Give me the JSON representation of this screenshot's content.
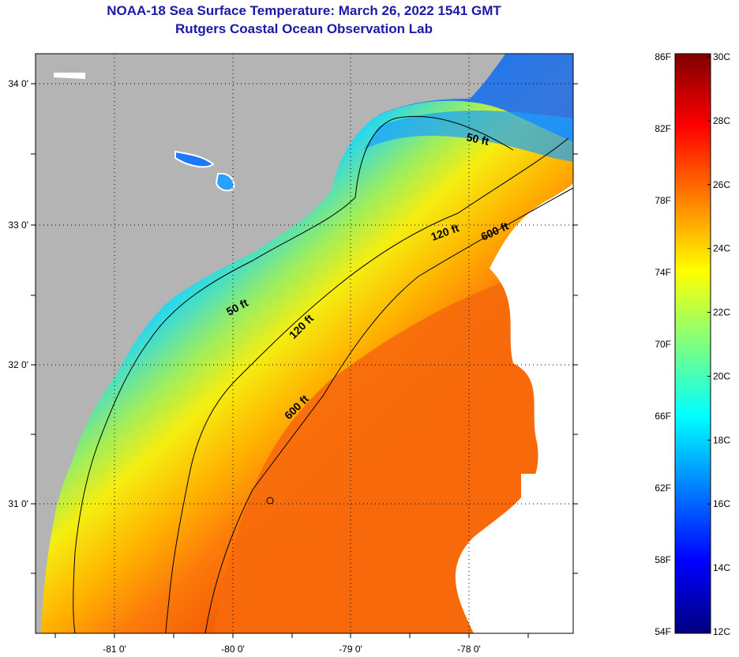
{
  "title": {
    "line1": "NOAA-18 Sea Surface Temperature:  March 26, 2022 1541 GMT",
    "line2": "Rutgers Coastal Ocean Observation Lab"
  },
  "map": {
    "lat_ticks": [
      "34 0'",
      "33 0'",
      "32 0'",
      "31 0'"
    ],
    "lon_ticks": [
      "-81 0'",
      "-80 0'",
      "-79 0'",
      "-78 0'"
    ],
    "contours": [
      {
        "label": "50 ft"
      },
      {
        "label": "50 ft"
      },
      {
        "label": "120 ft"
      },
      {
        "label": "120 ft"
      },
      {
        "label": "600 ft"
      },
      {
        "label": "600 ft"
      }
    ]
  },
  "colorbar": {
    "fahrenheit": [
      "86F",
      "82F",
      "78F",
      "74F",
      "70F",
      "66F",
      "62F",
      "58F",
      "54F"
    ],
    "celsius": [
      "30C",
      "28C",
      "26C",
      "24C",
      "22C",
      "20C",
      "18C",
      "16C",
      "14C",
      "12C"
    ],
    "range_f": [
      54,
      86
    ],
    "range_c": [
      12,
      30
    ],
    "colors": [
      "#00007f",
      "#0000ff",
      "#007fff",
      "#00ffff",
      "#7fff7f",
      "#ffff00",
      "#ff7f00",
      "#ff0000",
      "#7f0000"
    ]
  },
  "colors": {
    "land": "#b4b4b4",
    "no_data": "#ffffff",
    "title": "#1a1aa6"
  }
}
